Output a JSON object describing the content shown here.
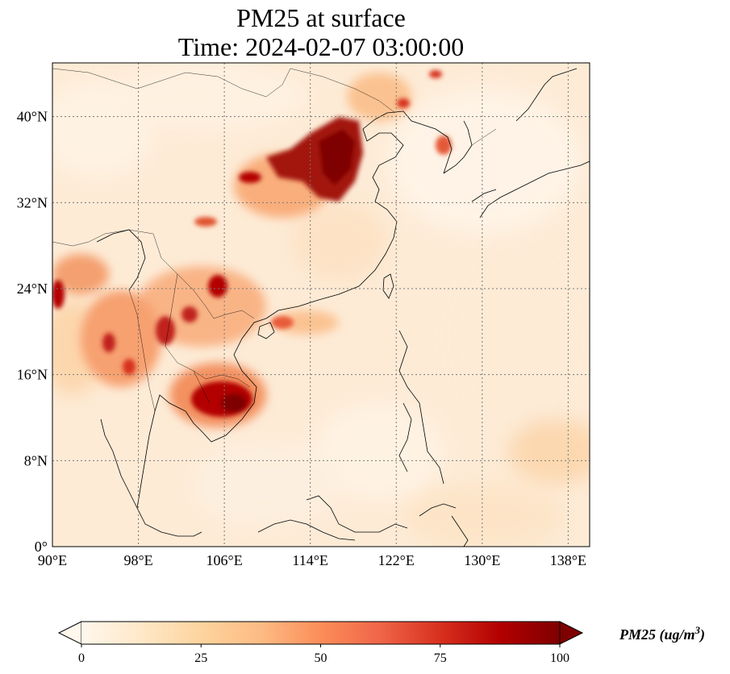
{
  "title_line1": "PM25 at surface",
  "title_line2": "Time: 2024-02-07 03:00:00",
  "map": {
    "lon_range": [
      90,
      140
    ],
    "lat_range": [
      0,
      45
    ],
    "gridlines": true,
    "gridline_style": "dotted",
    "coastlines": true,
    "borders": true,
    "lon_ticks": [
      {
        "value": 90,
        "label": "90°E"
      },
      {
        "value": 98,
        "label": "98°E"
      },
      {
        "value": 106,
        "label": "106°E"
      },
      {
        "value": 114,
        "label": "114°E"
      },
      {
        "value": 122,
        "label": "122°E"
      },
      {
        "value": 130,
        "label": "130°E"
      },
      {
        "value": 138,
        "label": "138°E"
      }
    ],
    "lat_ticks": [
      {
        "value": 0,
        "label": "0°"
      },
      {
        "value": 8,
        "label": "8°N"
      },
      {
        "value": 16,
        "label": "16°N"
      },
      {
        "value": 24,
        "label": "24°N"
      },
      {
        "value": 32,
        "label": "32°N"
      },
      {
        "value": 40,
        "label": "40°N"
      }
    ]
  },
  "colorbar": {
    "colormap": "OrRd",
    "min": 0,
    "max": 100,
    "extend": "both",
    "ticks": [
      0,
      25,
      50,
      75,
      100
    ],
    "label_text": "PM25 (ug/m",
    "label_superscript": "3",
    "label_close": ")",
    "colors": [
      "#fff7ec",
      "#fee8c8",
      "#fdd49e",
      "#fdbb84",
      "#fc8d59",
      "#ef6548",
      "#d7301f",
      "#b30000",
      "#7f0000"
    ]
  }
}
